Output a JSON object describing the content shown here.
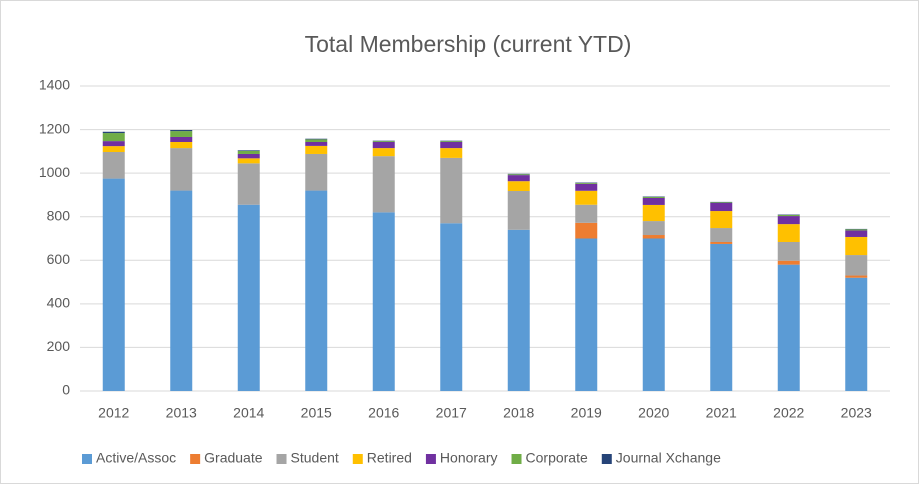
{
  "chart_data": {
    "type": "stacked_bar",
    "title": "Total Membership (current YTD)",
    "categories": [
      "2012",
      "2013",
      "2014",
      "2015",
      "2016",
      "2017",
      "2018",
      "2019",
      "2020",
      "2021",
      "2022",
      "2023"
    ],
    "series": [
      {
        "name": "Active/Assoc",
        "color": "#5b9bd5",
        "values": [
          975,
          920,
          855,
          920,
          820,
          770,
          740,
          700,
          700,
          675,
          580,
          520
        ]
      },
      {
        "name": "Graduate",
        "color": "#ed7d31",
        "values": [
          0,
          0,
          0,
          0,
          0,
          0,
          0,
          72,
          16,
          9,
          18,
          10
        ]
      },
      {
        "name": "Student",
        "color": "#a5a5a5",
        "values": [
          122,
          195,
          190,
          168,
          258,
          300,
          178,
          83,
          64,
          64,
          86,
          94
        ]
      },
      {
        "name": "Retired",
        "color": "#ffc000",
        "values": [
          27,
          28,
          23,
          37,
          37,
          45,
          45,
          64,
          74,
          78,
          82,
          83
        ]
      },
      {
        "name": "Honorary",
        "color": "#7030a0",
        "values": [
          23,
          23,
          20,
          18,
          28,
          28,
          28,
          32,
          32,
          37,
          37,
          30
        ]
      },
      {
        "name": "Corporate",
        "color": "#70ad47",
        "values": [
          37,
          27,
          14,
          12,
          4,
          4,
          4,
          4,
          5,
          3,
          5,
          5
        ]
      },
      {
        "name": "Journal Xchange",
        "color": "#264478",
        "values": [
          6,
          5,
          3,
          3,
          2,
          2,
          2,
          2,
          2,
          2,
          2,
          2
        ]
      }
    ],
    "ylim": [
      0,
      1400
    ],
    "yticks": [
      0,
      200,
      400,
      600,
      800,
      1000,
      1200,
      1400
    ],
    "grid": true,
    "legend": "bottom"
  }
}
